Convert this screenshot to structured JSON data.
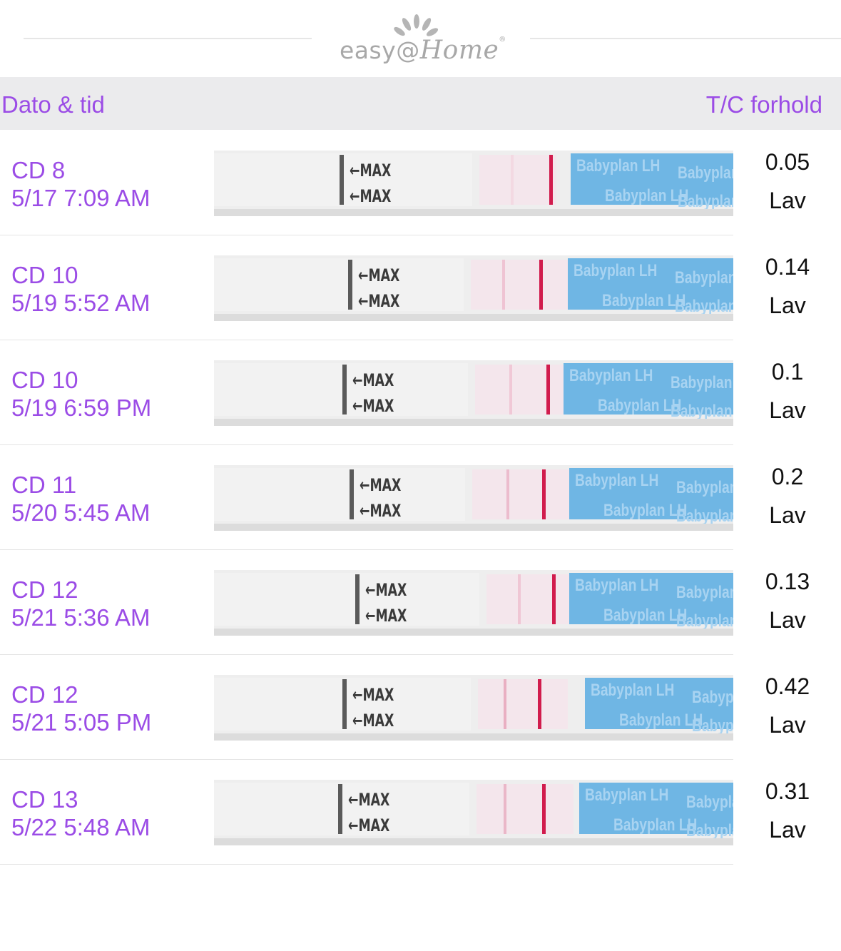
{
  "logo": {
    "text_main": "easy@",
    "text_home": "Home",
    "mark": "®"
  },
  "header": {
    "left": "Dato & tid",
    "right": "T/C forhold"
  },
  "strip_labels": {
    "max": "←MAX",
    "brand": "Babyplan LH"
  },
  "colors": {
    "accent": "#9b4ce6",
    "control_line": "#d11c4d",
    "strip_blue": "#6fb6e4"
  },
  "rows": [
    {
      "cd": "CD 8",
      "datetime": "5/17 7:09 AM",
      "ratio": "0.05",
      "level": "Lav"
    },
    {
      "cd": "CD 10",
      "datetime": "5/19 5:52 AM",
      "ratio": "0.14",
      "level": "Lav"
    },
    {
      "cd": "CD 10",
      "datetime": "5/19 6:59 PM",
      "ratio": "0.1",
      "level": "Lav"
    },
    {
      "cd": "CD 11",
      "datetime": "5/20 5:45 AM",
      "ratio": "0.2",
      "level": "Lav"
    },
    {
      "cd": "CD 12",
      "datetime": "5/21 5:36 AM",
      "ratio": "0.13",
      "level": "Lav"
    },
    {
      "cd": "CD 12",
      "datetime": "5/21 5:05 PM",
      "ratio": "0.42",
      "level": "Lav"
    },
    {
      "cd": "CD 13",
      "datetime": "5/22 5:48 AM",
      "ratio": "0.31",
      "level": "Lav"
    }
  ]
}
